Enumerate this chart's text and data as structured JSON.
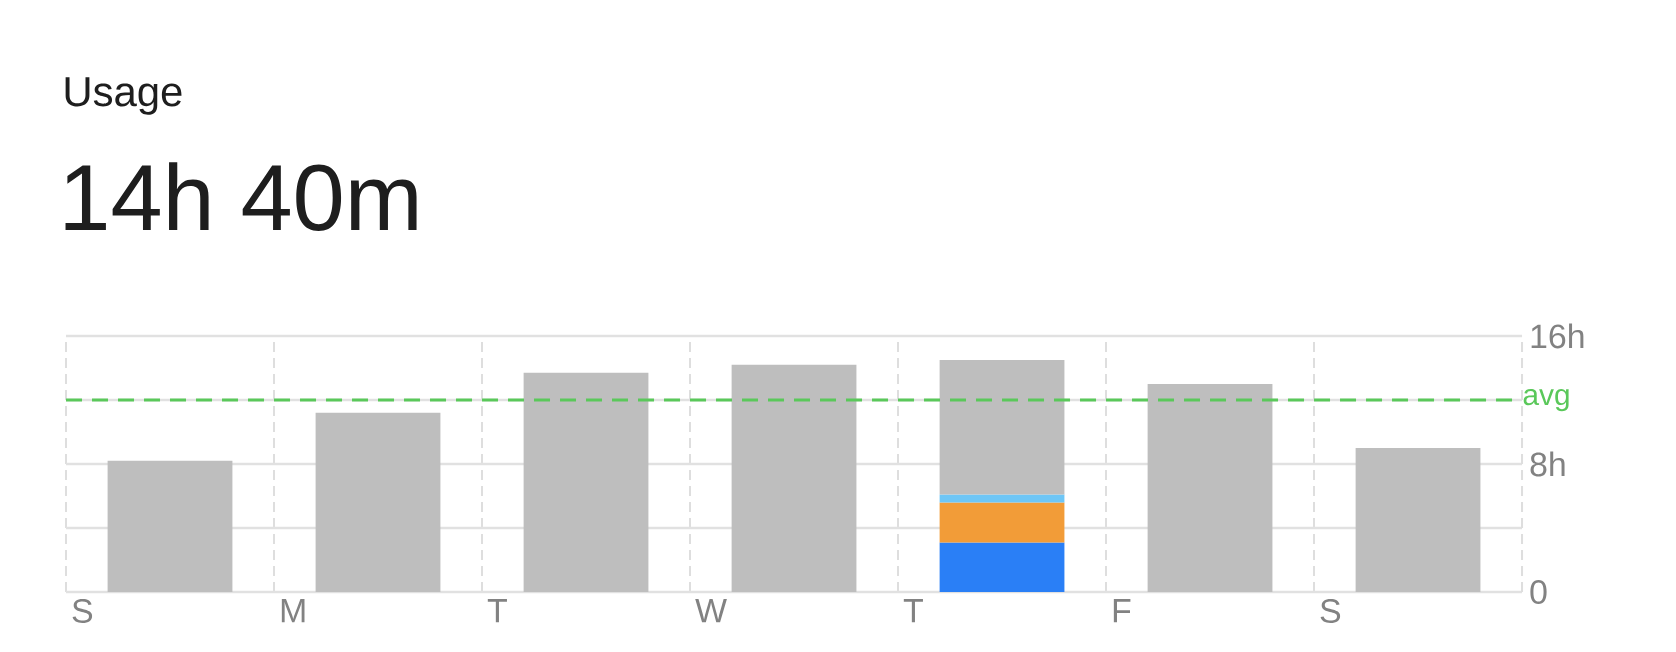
{
  "chart_data": {
    "type": "bar",
    "title": "Usage",
    "subtitle": "14h 40m",
    "stacked": true,
    "categories": [
      "S",
      "M",
      "T",
      "W",
      "T",
      "F",
      "S"
    ],
    "series": [
      {
        "color": "#2a7ff6",
        "values": [
          null,
          null,
          null,
          null,
          3.1,
          null,
          null
        ]
      },
      {
        "color": "#f29c38",
        "values": [
          null,
          null,
          null,
          null,
          2.5,
          null,
          null
        ]
      },
      {
        "color": "#6ec6f6",
        "values": [
          null,
          null,
          null,
          null,
          0.5,
          null,
          null
        ]
      },
      {
        "color": "#bebebe",
        "values": [
          8.2,
          11.2,
          13.7,
          14.2,
          8.4,
          13.0,
          9.0
        ]
      }
    ],
    "ylim": [
      0,
      16
    ],
    "yticks": [
      0,
      {
        "value": 4,
        "label": null
      },
      {
        "value": 8,
        "label": "8h"
      },
      {
        "value": 12,
        "label": null
      },
      {
        "value": 16,
        "label": "16h"
      }
    ],
    "grid": true,
    "ref_lines": [
      {
        "axis": "y",
        "value": 12,
        "label": "avg",
        "color": "#5ac85a",
        "line_style": "dashed"
      }
    ]
  }
}
